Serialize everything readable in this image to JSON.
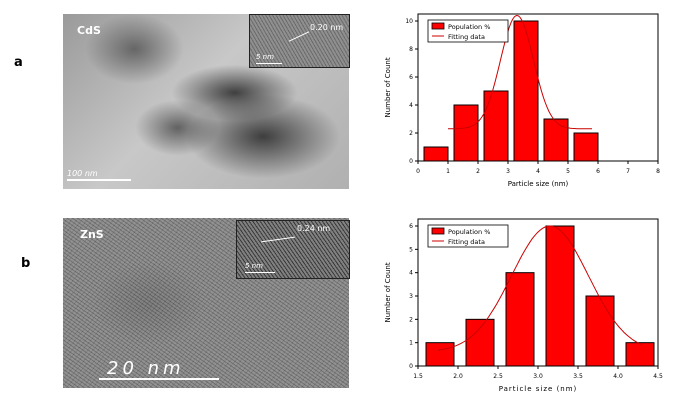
{
  "panels": [
    {
      "label": "a",
      "material": "CdS",
      "scale_label": "100 nm",
      "inset_scale_label": "5 nm",
      "lattice_label": "0.20 nm"
    },
    {
      "label": "b",
      "material": "ZnS",
      "scale_label": "20 nm",
      "inset_scale_label": "5 nm",
      "lattice_label": "0.24 nm"
    }
  ],
  "colors": {
    "bar": "#ff0000",
    "fit": "#cc0000",
    "axis": "#000000"
  },
  "chart_data": [
    {
      "type": "bar",
      "xlabel": "Particle size (nm)",
      "ylabel": "Number of Count",
      "xlim": [
        0,
        8
      ],
      "ylim": [
        0,
        10.5
      ],
      "xticks": [
        0,
        1,
        2,
        3,
        4,
        5,
        6,
        7,
        8
      ],
      "yticks": [
        0,
        2,
        4,
        6,
        8,
        10
      ],
      "legend_position": "top-left",
      "bars": [
        {
          "from": 0.2,
          "to": 1.0,
          "value": 1
        },
        {
          "from": 1.2,
          "to": 2.0,
          "value": 4
        },
        {
          "from": 2.2,
          "to": 3.0,
          "value": 5
        },
        {
          "from": 3.2,
          "to": 4.0,
          "value": 10
        },
        {
          "from": 4.2,
          "to": 5.0,
          "value": 3
        },
        {
          "from": 5.2,
          "to": 6.0,
          "value": 2
        }
      ],
      "fit": {
        "baseline": 2.3,
        "amplitude": 8.1,
        "center": 3.3,
        "sigma": 0.55,
        "x_range": [
          1.0,
          5.8
        ]
      },
      "series": [
        {
          "name": "Population %",
          "kind": "bar"
        },
        {
          "name": "Fitting data",
          "kind": "line"
        }
      ]
    },
    {
      "type": "bar",
      "xlabel": "Particle size (nm)",
      "ylabel": "Number of Count",
      "xlim": [
        1.5,
        4.5
      ],
      "ylim": [
        0,
        6.3
      ],
      "xticks": [
        1.5,
        2.0,
        2.5,
        3.0,
        3.5,
        4.0,
        4.5
      ],
      "yticks": [
        0,
        1,
        2,
        3,
        4,
        5,
        6
      ],
      "legend_position": "top-left",
      "bars": [
        {
          "from": 1.6,
          "to": 1.95,
          "value": 1
        },
        {
          "from": 2.1,
          "to": 2.45,
          "value": 2
        },
        {
          "from": 2.6,
          "to": 2.95,
          "value": 4
        },
        {
          "from": 3.1,
          "to": 3.45,
          "value": 6
        },
        {
          "from": 3.6,
          "to": 3.95,
          "value": 3
        },
        {
          "from": 4.1,
          "to": 4.45,
          "value": 1
        }
      ],
      "fit": {
        "baseline": 0.6,
        "amplitude": 5.4,
        "center": 3.15,
        "sigma": 0.48,
        "x_range": [
          1.75,
          4.3
        ]
      },
      "series": [
        {
          "name": "Population %",
          "kind": "bar"
        },
        {
          "name": "Fitting data",
          "kind": "line"
        }
      ]
    }
  ]
}
